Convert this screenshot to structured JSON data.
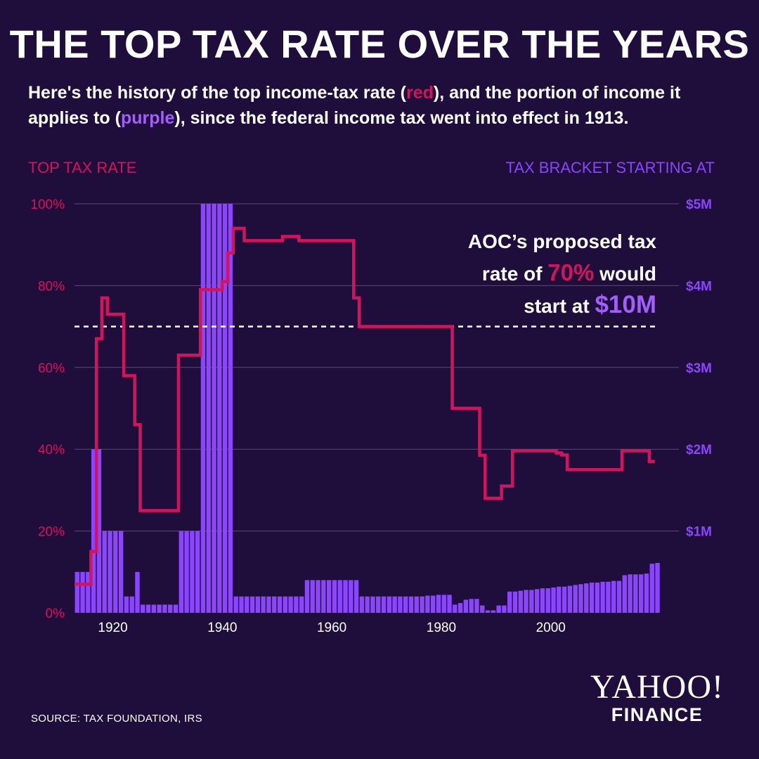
{
  "title": "THE TOP TAX RATE OVER THE YEARS",
  "subtitle": {
    "line1_prefix": "Here's the history of the top income-tax rate (",
    "red_word": "red",
    "line1_mid": "), and the portion of income it applies to (",
    "purple_word": "purple",
    "line1_suffix": "), since the federal income tax went into effect in 1913."
  },
  "colors": {
    "background": "#1f0e3b",
    "red": "#d4145a",
    "purple": "#8b45ff",
    "grid": "#5a4a75"
  },
  "annotation": {
    "line1": "AOC’s proposed tax",
    "line2_prefix": "rate of",
    "line2_rate": "70%",
    "line2_suffix": "would",
    "line3_prefix": "start at",
    "line3_amount": "$10M"
  },
  "source": "SOURCE:  TAX FOUNDATION, IRS",
  "logo": {
    "yahoo": "YAHOO!",
    "finance": "FINANCE"
  },
  "chart_data": {
    "type": "bar",
    "title": "THE TOP TAX RATE OVER THE YEARS",
    "xlabel": "",
    "ylabel_left": "TOP TAX RATE",
    "ylabel_right": "TAX BRACKET STARTING AT",
    "x_ticks": [
      "1920",
      "1940",
      "1960",
      "1980",
      "2000"
    ],
    "x_tick_values": [
      1920,
      1940,
      1960,
      1980,
      2000
    ],
    "y_left_ticks": [
      "0%",
      "20%",
      "40%",
      "60%",
      "80%",
      "100%"
    ],
    "y_left_tick_values": [
      0,
      20,
      40,
      60,
      80,
      100
    ],
    "y_right_ticks": [
      "$1M",
      "$2M",
      "$3M",
      "$4M",
      "$5M"
    ],
    "y_right_tick_values": [
      1,
      2,
      3,
      4,
      5
    ],
    "xlim": [
      1913,
      2019
    ],
    "ylim_left": [
      0,
      100
    ],
    "ylim_right": [
      0,
      5
    ],
    "grid": true,
    "reference_line": {
      "value": 70,
      "style": "dashed",
      "color": "#ffffff"
    },
    "series": [
      {
        "name": "Tax bracket starting at ($M)",
        "type": "bar",
        "axis": "right",
        "x": [
          1913,
          1914,
          1915,
          1916,
          1917,
          1918,
          1919,
          1920,
          1921,
          1922,
          1923,
          1924,
          1925,
          1926,
          1927,
          1928,
          1929,
          1930,
          1931,
          1932,
          1933,
          1934,
          1935,
          1936,
          1937,
          1938,
          1939,
          1940,
          1941,
          1942,
          1943,
          1944,
          1945,
          1946,
          1947,
          1948,
          1949,
          1950,
          1951,
          1952,
          1953,
          1954,
          1955,
          1956,
          1957,
          1958,
          1959,
          1960,
          1961,
          1962,
          1963,
          1964,
          1965,
          1966,
          1967,
          1968,
          1969,
          1970,
          1971,
          1972,
          1973,
          1974,
          1975,
          1976,
          1977,
          1978,
          1979,
          1980,
          1981,
          1982,
          1983,
          1984,
          1985,
          1986,
          1987,
          1988,
          1989,
          1990,
          1991,
          1992,
          1993,
          1994,
          1995,
          1996,
          1997,
          1998,
          1999,
          2000,
          2001,
          2002,
          2003,
          2004,
          2005,
          2006,
          2007,
          2008,
          2009,
          2010,
          2011,
          2012,
          2013,
          2014,
          2015,
          2016,
          2017,
          2018,
          2019
        ],
        "values": [
          0.5,
          0.5,
          0.5,
          2.0,
          2.0,
          1.0,
          1.0,
          1.0,
          1.0,
          0.2,
          0.2,
          0.5,
          0.1,
          0.1,
          0.1,
          0.1,
          0.1,
          0.1,
          0.1,
          1.0,
          1.0,
          1.0,
          1.0,
          5.0,
          5.0,
          5.0,
          5.0,
          5.0,
          5.0,
          0.2,
          0.2,
          0.2,
          0.2,
          0.2,
          0.2,
          0.2,
          0.2,
          0.2,
          0.2,
          0.2,
          0.2,
          0.2,
          0.4,
          0.4,
          0.4,
          0.4,
          0.4,
          0.4,
          0.4,
          0.4,
          0.4,
          0.4,
          0.2,
          0.2,
          0.2,
          0.2,
          0.2,
          0.2,
          0.2,
          0.2,
          0.2,
          0.2,
          0.2,
          0.2,
          0.21,
          0.21,
          0.22,
          0.22,
          0.22,
          0.1,
          0.12,
          0.16,
          0.17,
          0.17,
          0.09,
          0.03,
          0.03,
          0.09,
          0.09,
          0.26,
          0.26,
          0.27,
          0.28,
          0.28,
          0.29,
          0.3,
          0.3,
          0.31,
          0.32,
          0.32,
          0.33,
          0.34,
          0.35,
          0.36,
          0.37,
          0.37,
          0.38,
          0.38,
          0.39,
          0.39,
          0.46,
          0.47,
          0.47,
          0.47,
          0.48,
          0.6,
          0.61
        ]
      },
      {
        "name": "Top tax rate (%)",
        "type": "step",
        "axis": "left",
        "x": [
          1913,
          1915,
          1916,
          1917,
          1918,
          1919,
          1921,
          1922,
          1924,
          1925,
          1932,
          1936,
          1940,
          1941,
          1942,
          1944,
          1946,
          1951,
          1952,
          1954,
          1964,
          1965,
          1982,
          1987,
          1988,
          1991,
          1993,
          2001,
          2002,
          2003,
          2013,
          2018,
          2019
        ],
        "values": [
          7,
          7,
          15,
          67,
          77,
          73,
          73,
          58,
          46,
          25,
          63,
          79,
          81,
          88,
          94,
          91,
          91,
          92,
          92,
          91,
          77,
          70,
          50,
          38.5,
          28,
          31,
          39.6,
          39.1,
          38.6,
          35,
          39.6,
          37,
          37
        ]
      }
    ]
  }
}
